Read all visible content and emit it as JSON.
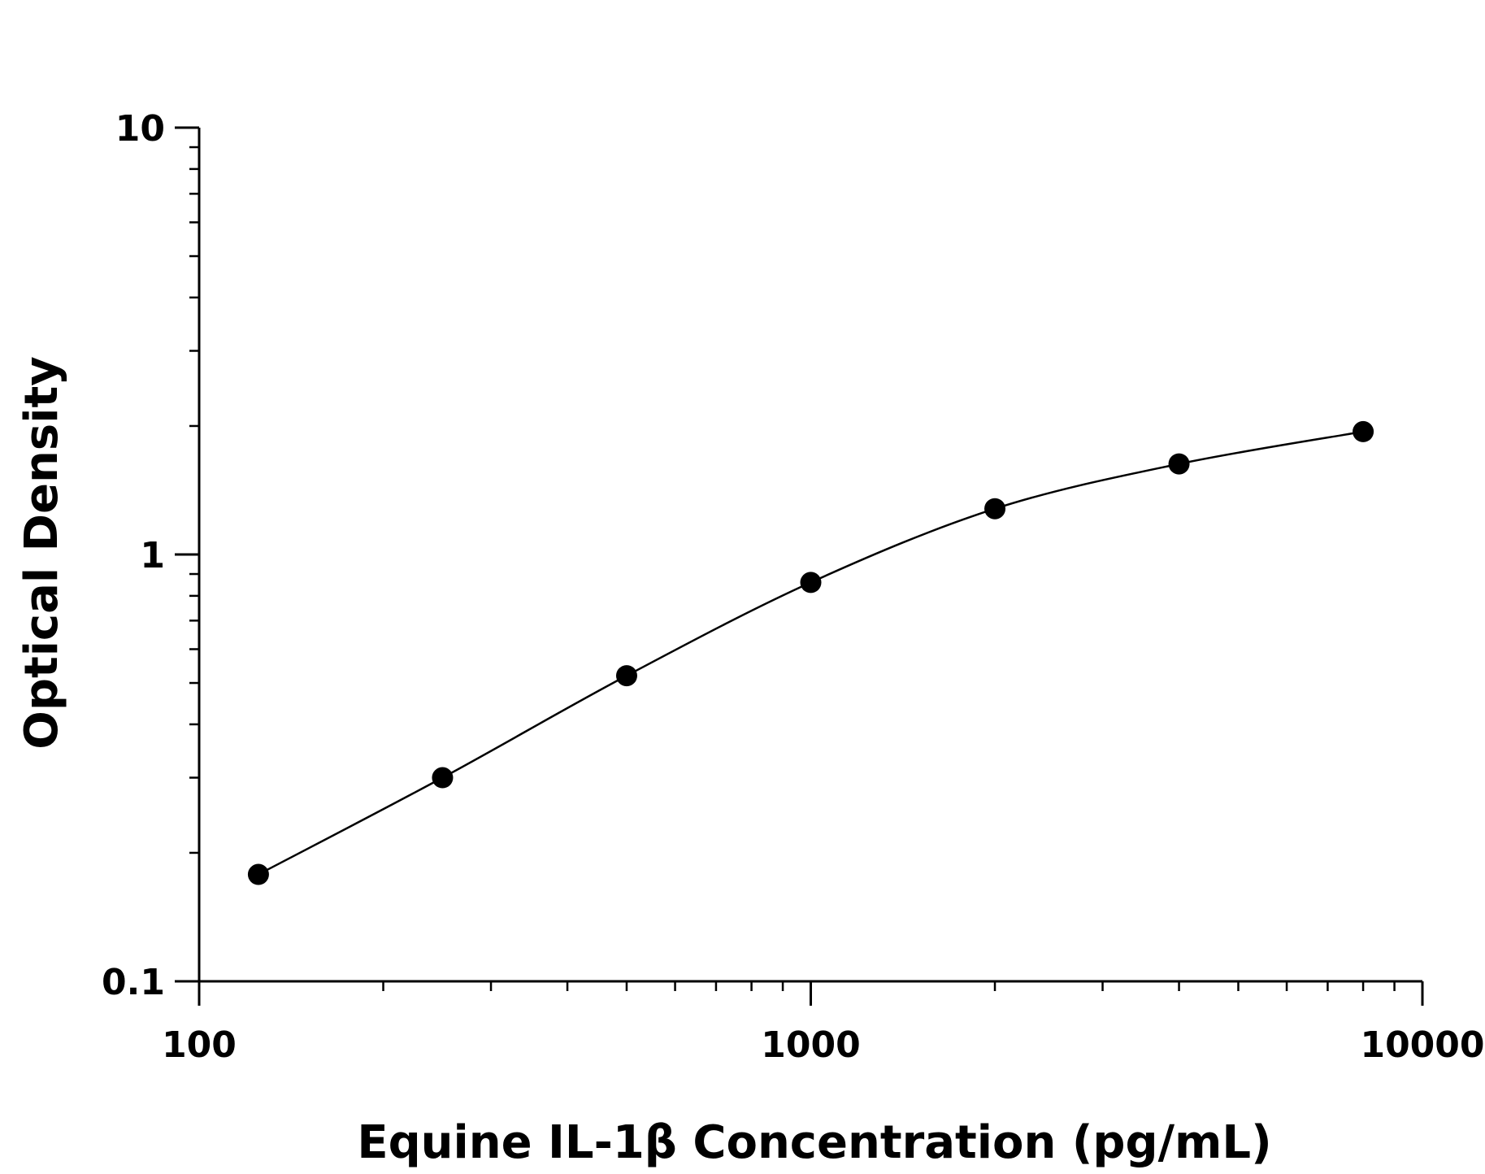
{
  "chart_data": {
    "type": "scatter",
    "xlabel": "Equine IL-1β Concentration (pg/mL)",
    "ylabel": "Optical Density",
    "xscale": "log",
    "yscale": "log",
    "xlim": [
      100,
      10000
    ],
    "ylim": [
      0.1,
      10
    ],
    "x_ticks": [
      "100",
      "1000",
      "10000"
    ],
    "y_ticks": [
      "0.1",
      "1",
      "10"
    ],
    "grid": false,
    "legend": "none",
    "series": [
      {
        "x": [
          125,
          250,
          500,
          1000,
          2000,
          4000,
          8000
        ],
        "y": [
          0.178,
          0.3,
          0.52,
          0.86,
          1.28,
          1.63,
          1.94
        ],
        "marker": "filled-circle",
        "fit": "smooth curve through points",
        "color": "#000000"
      }
    ]
  }
}
